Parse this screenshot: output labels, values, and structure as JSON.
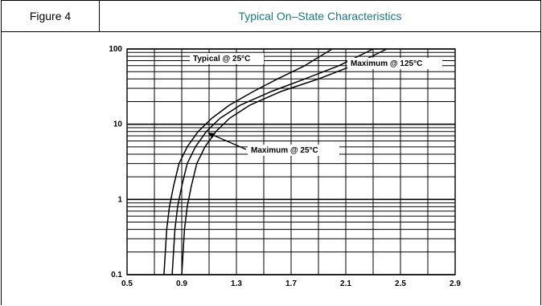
{
  "header": {
    "figure_label": "Figure 4",
    "title": "Typical On–State Characteristics",
    "title_color": "#177a86"
  },
  "chart_data": {
    "type": "line",
    "title": "Typical On–State Characteristics",
    "xlabel": "",
    "ylabel": "",
    "x_ticks": [
      "0.5",
      "0.9",
      "1.3",
      "1.7",
      "2.1",
      "2.5",
      "2.9"
    ],
    "y_ticks": [
      "100",
      "10",
      "1",
      "0.1"
    ],
    "xlim": [
      0.5,
      2.9
    ],
    "ylim": [
      0.1,
      100
    ],
    "y_scale": "log",
    "grid": true,
    "series": [
      {
        "name": "Typical @ 25°C",
        "x": [
          0.77,
          0.78,
          0.79,
          0.81,
          0.84,
          0.88,
          0.94,
          1.02,
          1.12,
          1.25,
          1.42,
          1.6,
          1.8,
          2.0
        ],
        "y": [
          0.1,
          0.2,
          0.4,
          0.8,
          1.5,
          3,
          5,
          8,
          12,
          18,
          27,
          40,
          60,
          100
        ]
      },
      {
        "name": "Maximum @ 125°C",
        "x": [
          0.83,
          0.84,
          0.85,
          0.87,
          0.9,
          0.94,
          1.0,
          1.08,
          1.18,
          1.33,
          1.55,
          1.8,
          2.05,
          2.3
        ],
        "y": [
          0.1,
          0.2,
          0.4,
          0.8,
          1.5,
          3,
          5,
          8,
          12,
          18,
          27,
          40,
          60,
          100
        ]
      },
      {
        "name": "Maximum @ 25°C",
        "x": [
          0.9,
          0.91,
          0.92,
          0.94,
          0.97,
          1.01,
          1.07,
          1.15,
          1.25,
          1.4,
          1.62,
          1.9,
          2.15,
          2.4
        ],
        "y": [
          0.1,
          0.2,
          0.4,
          0.8,
          1.5,
          3,
          5,
          8,
          12,
          18,
          27,
          40,
          60,
          100
        ]
      }
    ],
    "annotations": [
      "Typical @ 25°C",
      "Maximum @ 125°C",
      "Maximum @ 25°C"
    ]
  }
}
